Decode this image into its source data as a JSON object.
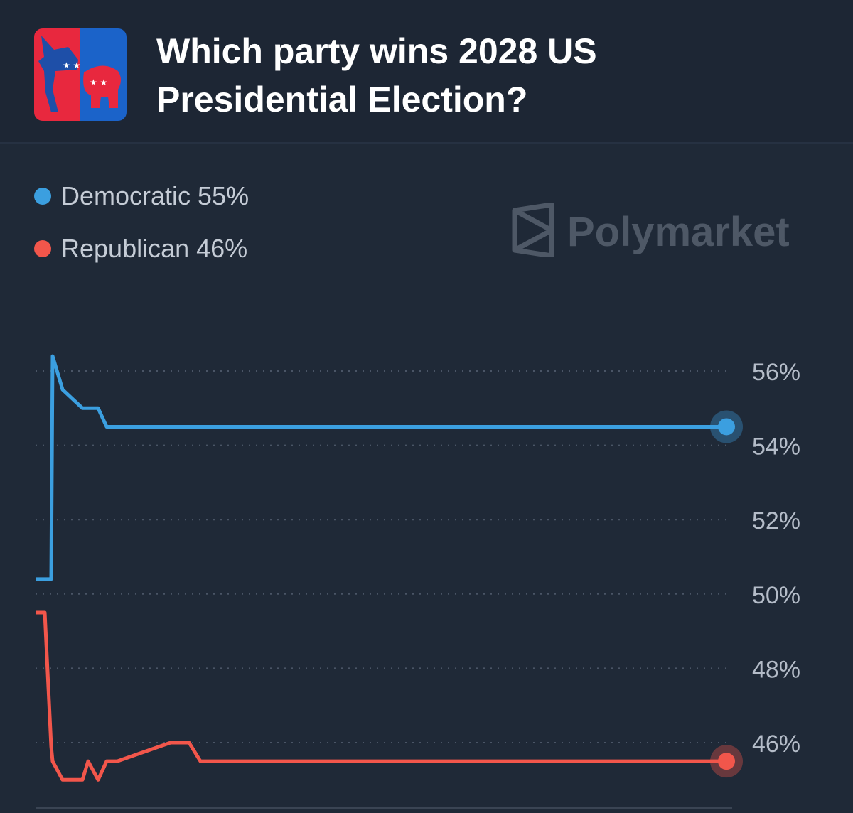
{
  "header": {
    "title": "Which party wins 2028 US Presidential Election?"
  },
  "legend": [
    {
      "label": "Democratic 55%",
      "color": "#3b9fe0"
    },
    {
      "label": "Republican 46%",
      "color": "#f2564b"
    }
  ],
  "watermark": {
    "text": "Polymarket",
    "icon": "polymarket-logo-icon"
  },
  "chart_data": {
    "type": "line",
    "yticks": [
      "56%",
      "54%",
      "52%",
      "50%",
      "48%",
      "46%"
    ],
    "ylim": [
      44.5,
      56.8
    ],
    "grid": true,
    "series": [
      {
        "name": "Democratic",
        "color": "#3b9fe0",
        "values": [
          50.4,
          50.4,
          50.4,
          56.4,
          55.5,
          55.0,
          55.0,
          55.0,
          54.5,
          54.5,
          54.5,
          54.5,
          54.5,
          54.5
        ]
      },
      {
        "name": "Republican",
        "color": "#f2564b",
        "values": [
          49.5,
          49.5,
          45.9,
          45.5,
          45.0,
          45.0,
          45.5,
          45.0,
          45.5,
          45.5,
          46.0,
          46.0,
          45.5,
          45.5
        ]
      }
    ]
  }
}
